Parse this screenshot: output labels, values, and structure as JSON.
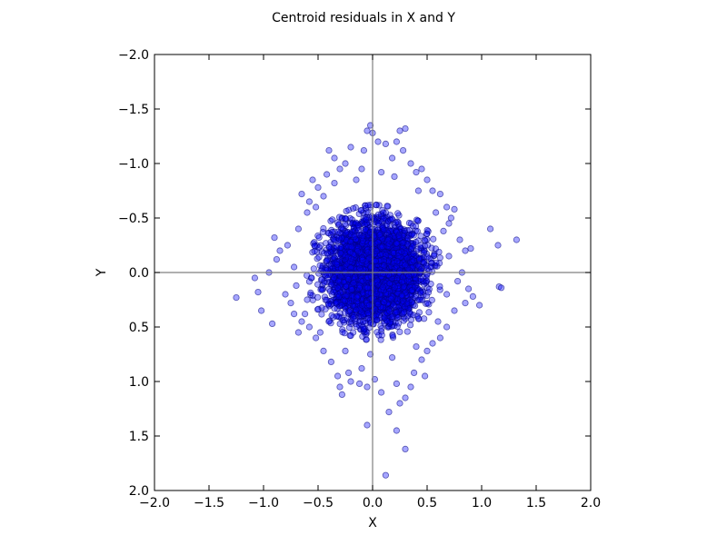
{
  "chart_data": {
    "type": "scatter",
    "title": "Centroid residuals in X and Y",
    "xlabel": "X",
    "ylabel": "Y",
    "xlim": [
      -2.0,
      2.0
    ],
    "ylim": [
      -2.0,
      2.0
    ],
    "y_axis_inverted": true,
    "grid": false,
    "reference_lines": {
      "x": 0,
      "y": 0,
      "color": "#808080"
    },
    "marker": {
      "fill": "#0000ff",
      "edge": "#000080",
      "alpha": 0.35
    },
    "x_ticks": [
      "−2.0",
      "−1.5",
      "−1.0",
      "−0.5",
      "0.0",
      "0.5",
      "1.0",
      "1.5",
      "2.0"
    ],
    "x_tick_values": [
      -2.0,
      -1.5,
      -1.0,
      -0.5,
      0.0,
      0.5,
      1.0,
      1.5,
      2.0
    ],
    "y_ticks": [
      "−2.0",
      "−1.5",
      "−1.0",
      "−0.5",
      "0.0",
      "0.5",
      "1.0",
      "1.5",
      "2.0"
    ],
    "y_tick_values": [
      -2.0,
      -1.5,
      -1.0,
      -0.5,
      0.0,
      0.5,
      1.0,
      1.5,
      2.0
    ],
    "points": [
      [
        -1.25,
        0.23
      ],
      [
        -1.05,
        0.18
      ],
      [
        -1.02,
        0.35
      ],
      [
        -0.92,
        0.47
      ],
      [
        -1.08,
        0.05
      ],
      [
        -0.95,
        0.0
      ],
      [
        -0.88,
        -0.12
      ],
      [
        -0.85,
        -0.2
      ],
      [
        -0.9,
        -0.32
      ],
      [
        -0.78,
        -0.25
      ],
      [
        -0.8,
        0.2
      ],
      [
        -0.75,
        0.28
      ],
      [
        -0.72,
        0.38
      ],
      [
        -0.68,
        0.55
      ],
      [
        -0.65,
        0.45
      ],
      [
        -0.6,
        -0.55
      ],
      [
        -0.65,
        -0.72
      ],
      [
        -0.55,
        -0.85
      ],
      [
        -0.58,
        -0.65
      ],
      [
        -0.5,
        -0.78
      ],
      [
        -0.42,
        -0.9
      ],
      [
        -0.4,
        -1.12
      ],
      [
        -0.35,
        -1.05
      ],
      [
        -0.3,
        -0.95
      ],
      [
        -0.25,
        -1.0
      ],
      [
        -0.2,
        -1.15
      ],
      [
        -0.15,
        -0.85
      ],
      [
        -0.08,
        -1.12
      ],
      [
        -0.05,
        -1.3
      ],
      [
        -0.02,
        -1.35
      ],
      [
        0.0,
        -1.28
      ],
      [
        0.05,
        -1.2
      ],
      [
        0.12,
        -1.18
      ],
      [
        0.18,
        -1.05
      ],
      [
        0.22,
        -1.2
      ],
      [
        0.25,
        -1.3
      ],
      [
        0.3,
        -1.32
      ],
      [
        0.28,
        -1.12
      ],
      [
        0.35,
        -1.0
      ],
      [
        0.4,
        -0.92
      ],
      [
        0.45,
        -0.95
      ],
      [
        0.5,
        -0.85
      ],
      [
        0.55,
        -0.75
      ],
      [
        0.62,
        -0.72
      ],
      [
        0.68,
        -0.6
      ],
      [
        0.72,
        -0.5
      ],
      [
        0.75,
        -0.58
      ],
      [
        0.7,
        -0.45
      ],
      [
        0.8,
        -0.3
      ],
      [
        0.85,
        -0.2
      ],
      [
        0.9,
        -0.22
      ],
      [
        0.82,
        0.0
      ],
      [
        0.78,
        0.08
      ],
      [
        0.88,
        0.15
      ],
      [
        0.92,
        0.22
      ],
      [
        0.98,
        0.3
      ],
      [
        1.08,
        -0.4
      ],
      [
        1.15,
        -0.25
      ],
      [
        1.16,
        0.13
      ],
      [
        1.18,
        0.14
      ],
      [
        1.32,
        -0.3
      ],
      [
        0.85,
        0.28
      ],
      [
        0.75,
        0.35
      ],
      [
        0.68,
        0.5
      ],
      [
        0.62,
        0.6
      ],
      [
        0.55,
        0.65
      ],
      [
        0.5,
        0.72
      ],
      [
        0.45,
        0.8
      ],
      [
        0.48,
        0.95
      ],
      [
        0.38,
        0.92
      ],
      [
        0.35,
        1.05
      ],
      [
        0.3,
        1.15
      ],
      [
        0.22,
        1.02
      ],
      [
        0.25,
        1.2
      ],
      [
        0.15,
        1.28
      ],
      [
        0.22,
        1.45
      ],
      [
        0.3,
        1.62
      ],
      [
        0.12,
        1.86
      ],
      [
        0.08,
        1.1
      ],
      [
        0.02,
        0.98
      ],
      [
        -0.05,
        1.4
      ],
      [
        -0.05,
        1.05
      ],
      [
        -0.1,
        0.88
      ],
      [
        -0.12,
        1.02
      ],
      [
        -0.2,
        1.0
      ],
      [
        -0.22,
        0.92
      ],
      [
        -0.28,
        1.12
      ],
      [
        -0.3,
        1.05
      ],
      [
        -0.32,
        0.95
      ],
      [
        -0.38,
        0.82
      ],
      [
        -0.45,
        0.72
      ],
      [
        -0.52,
        0.6
      ],
      [
        -0.58,
        0.5
      ],
      [
        -0.62,
        0.38
      ],
      [
        -0.7,
        0.12
      ],
      [
        -0.72,
        -0.05
      ],
      [
        -0.68,
        -0.4
      ],
      [
        -0.52,
        -0.6
      ],
      [
        -0.45,
        -0.7
      ],
      [
        -0.35,
        -0.82
      ],
      [
        -0.1,
        -0.95
      ],
      [
        0.08,
        -0.92
      ],
      [
        0.2,
        -0.88
      ],
      [
        0.42,
        -0.75
      ],
      [
        0.58,
        -0.55
      ],
      [
        0.65,
        -0.38
      ],
      [
        0.7,
        -0.15
      ],
      [
        0.68,
        0.2
      ],
      [
        0.6,
        0.45
      ],
      [
        0.4,
        0.68
      ],
      [
        0.18,
        0.78
      ],
      [
        -0.02,
        0.75
      ],
      [
        -0.25,
        0.72
      ],
      [
        -0.48,
        0.55
      ],
      [
        -0.6,
        0.25
      ]
    ]
  }
}
